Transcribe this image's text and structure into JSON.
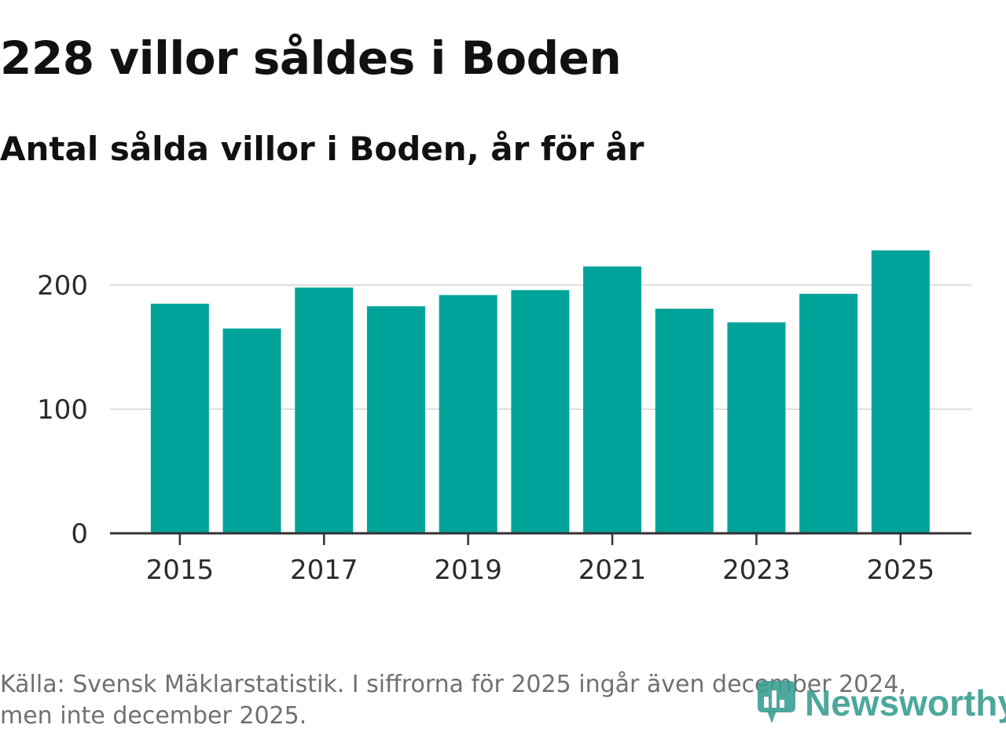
{
  "header": {
    "title": "228 villor såldes i Boden",
    "subtitle": "Antal sålda villor i Boden, år för år"
  },
  "footer": {
    "source_line1": "Källa: Svensk Mäklarstatistik. I siffrorna för 2025 ingår även december 2024,",
    "source_line2": "men inte december 2025.",
    "brand": "Newsworthy"
  },
  "colors": {
    "bar": "#00a39a",
    "grid": "#dedede",
    "axis": "#333333",
    "brand": "#3a9e92"
  },
  "chart_data": {
    "type": "bar",
    "title": "228 villor såldes i Boden",
    "subtitle": "Antal sålda villor i Boden, år för år",
    "xlabel": "",
    "ylabel": "",
    "categories": [
      "2015",
      "2016",
      "2017",
      "2018",
      "2019",
      "2020",
      "2021",
      "2022",
      "2023",
      "2024",
      "2025"
    ],
    "values": [
      185,
      165,
      198,
      183,
      192,
      196,
      215,
      181,
      170,
      193,
      228
    ],
    "ylim": [
      0,
      230
    ],
    "yticks": [
      0,
      100,
      200
    ],
    "xtick_labels": [
      "2015",
      "2017",
      "2019",
      "2021",
      "2023",
      "2025"
    ],
    "grid": "horizontal",
    "legend": "none"
  }
}
